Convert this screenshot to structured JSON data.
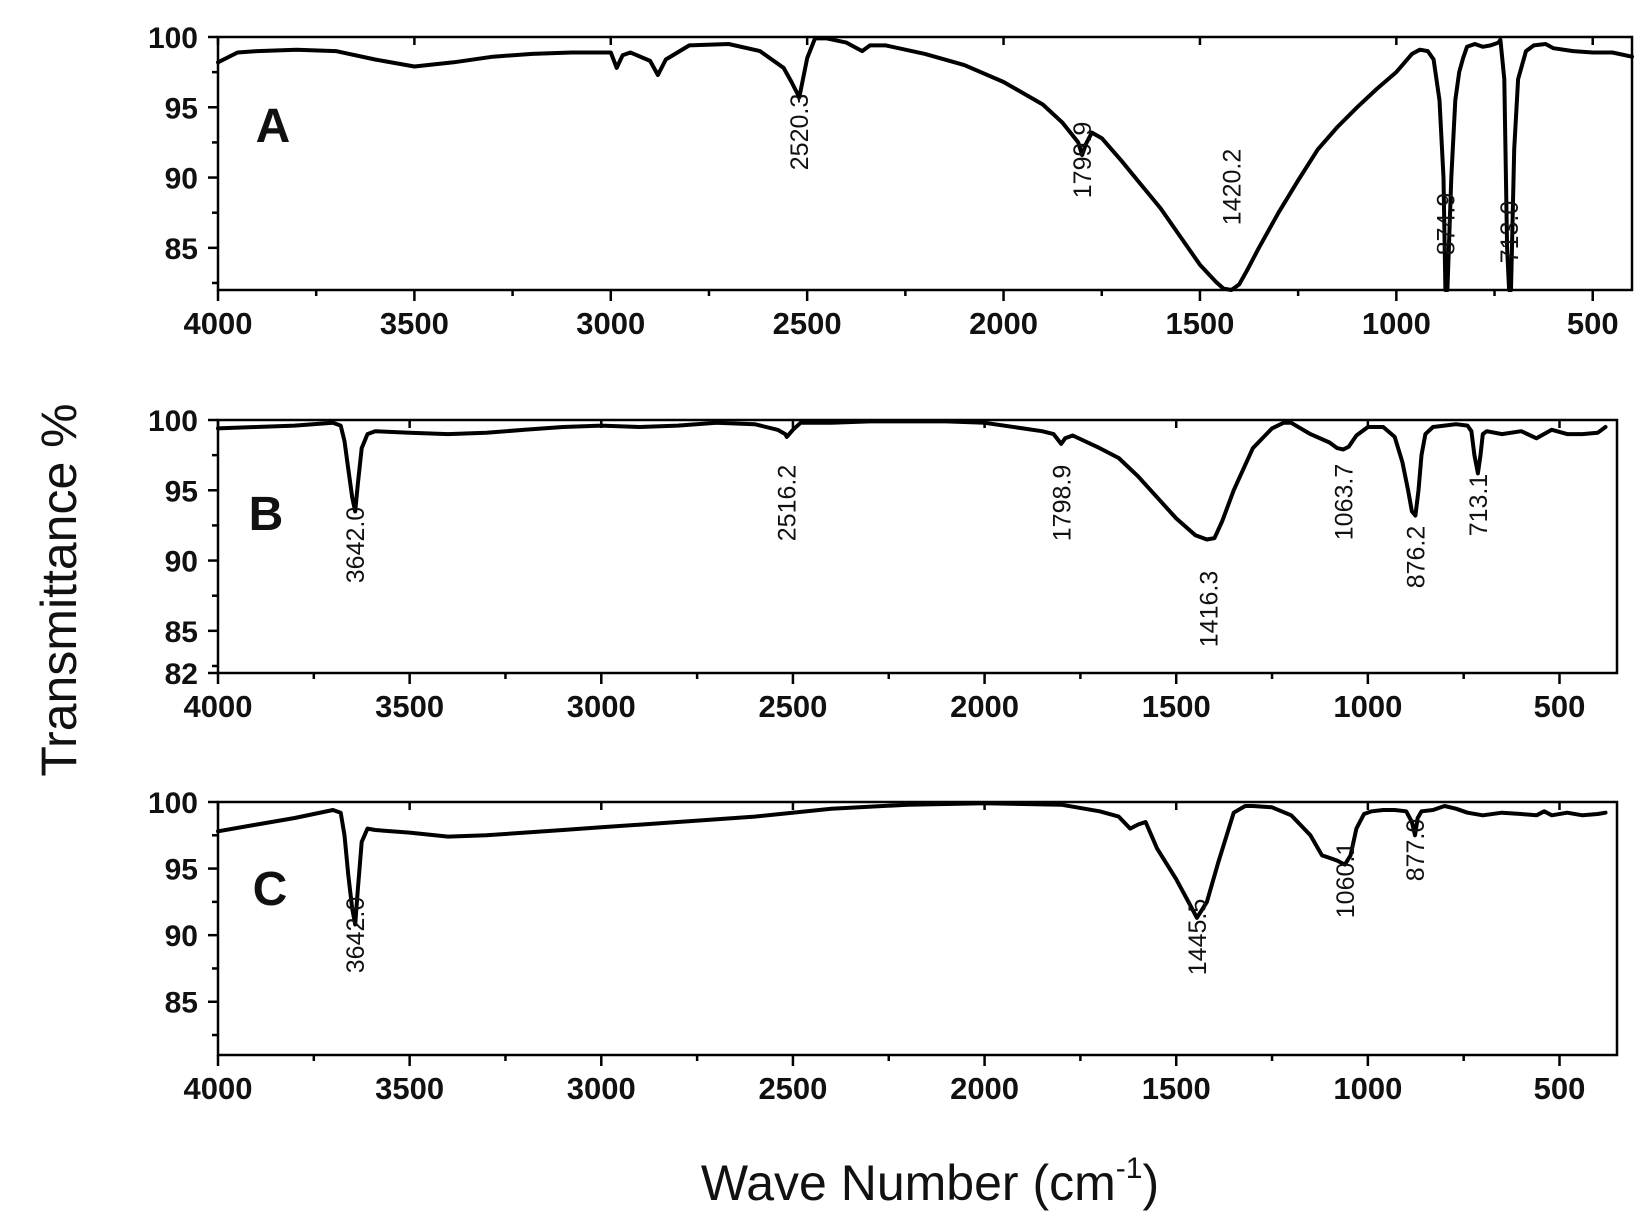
{
  "figure": {
    "ylabel": "Transmittance %",
    "xlabel_main": "Wave Number (cm",
    "xlabel_sup": "-1",
    "xlabel_close": ")"
  },
  "chart_data": [
    {
      "type": "line",
      "panel": "A",
      "xlabel": "Wave Number (cm-1)",
      "ylabel": "Transmittance %",
      "xlim": [
        4000,
        400
      ],
      "ylim": [
        82,
        100
      ],
      "x_ticks": [
        4000,
        3500,
        3000,
        2500,
        2000,
        1500,
        1000,
        500
      ],
      "x_tick_labels": [
        "4000",
        "3500",
        "3000",
        "2500",
        "2000",
        "1500",
        "1000",
        "500"
      ],
      "y_ticks": [
        100,
        95,
        90,
        85
      ],
      "y_tick_labels": [
        "100",
        "95",
        "90",
        "85"
      ],
      "series": [
        {
          "name": "A",
          "x": [
            4000,
            3950,
            3900,
            3800,
            3700,
            3600,
            3500,
            3400,
            3300,
            3200,
            3100,
            3000,
            2985,
            2970,
            2950,
            2900,
            2880,
            2860,
            2800,
            2700,
            2620,
            2560,
            2540,
            2520,
            2500,
            2480,
            2450,
            2400,
            2360,
            2340,
            2300,
            2200,
            2100,
            2000,
            1900,
            1850,
            1810,
            1800,
            1790,
            1775,
            1750,
            1700,
            1650,
            1600,
            1550,
            1500,
            1460,
            1440,
            1420,
            1400,
            1380,
            1350,
            1300,
            1250,
            1200,
            1150,
            1100,
            1050,
            1000,
            960,
            940,
            920,
            905,
            890,
            880,
            875,
            870,
            860,
            850,
            840,
            830,
            820,
            800,
            780,
            760,
            740,
            735,
            725,
            718,
            713,
            708,
            700,
            690,
            670,
            650,
            620,
            600,
            550,
            500,
            450,
            400
          ],
          "values": [
            98.2,
            98.9,
            99.0,
            99.1,
            99.0,
            98.4,
            97.9,
            98.2,
            98.6,
            98.8,
            98.9,
            98.9,
            97.8,
            98.7,
            98.9,
            98.3,
            97.3,
            98.4,
            99.4,
            99.5,
            99.0,
            97.8,
            96.8,
            95.7,
            98.5,
            99.9,
            99.9,
            99.6,
            99.0,
            99.4,
            99.4,
            98.8,
            98.0,
            96.8,
            95.2,
            93.9,
            92.5,
            91.6,
            92.4,
            93.2,
            92.8,
            91.2,
            89.5,
            87.8,
            85.8,
            83.8,
            82.6,
            82.1,
            82.0,
            82.4,
            83.4,
            85.0,
            87.5,
            89.8,
            92.0,
            93.6,
            95.0,
            96.3,
            97.5,
            98.8,
            99.1,
            99.0,
            98.4,
            95.5,
            90.0,
            82.0,
            82.0,
            90.0,
            95.5,
            97.5,
            98.5,
            99.3,
            99.5,
            99.3,
            99.4,
            99.6,
            99.8,
            97.0,
            85.0,
            82.0,
            82.0,
            92.0,
            97.0,
            99.0,
            99.4,
            99.5,
            99.2,
            99.0,
            98.9,
            98.9,
            98.6
          ]
        }
      ],
      "annotations": [
        {
          "label": "2520.3",
          "x": 2520.3
        },
        {
          "label": "1799.9",
          "x": 1799.9
        },
        {
          "label": "1420.2",
          "x": 1420.2
        },
        {
          "label": "874.9",
          "x": 874.9
        },
        {
          "label": "713.0",
          "x": 713.0
        }
      ]
    },
    {
      "type": "line",
      "panel": "B",
      "xlabel": "Wave Number (cm-1)",
      "ylabel": "Transmittance %",
      "xlim": [
        4000,
        350
      ],
      "ylim": [
        82,
        100
      ],
      "x_ticks": [
        4000,
        3500,
        3000,
        2500,
        2000,
        1500,
        1000,
        500
      ],
      "x_tick_labels": [
        "4000",
        "3500",
        "3000",
        "2500",
        "2000",
        "1500",
        "1000",
        "500"
      ],
      "y_ticks": [
        100,
        95,
        90,
        85,
        82
      ],
      "y_tick_labels": [
        "100",
        "95",
        "90",
        "85",
        "82"
      ],
      "series": [
        {
          "name": "B",
          "x": [
            4000,
            3900,
            3800,
            3700,
            3680,
            3670,
            3660,
            3650,
            3642,
            3635,
            3625,
            3610,
            3590,
            3500,
            3400,
            3300,
            3200,
            3100,
            3000,
            2900,
            2800,
            2700,
            2600,
            2540,
            2520,
            2516,
            2500,
            2480,
            2400,
            2300,
            2200,
            2100,
            2000,
            1900,
            1850,
            1820,
            1800,
            1790,
            1770,
            1700,
            1650,
            1600,
            1550,
            1500,
            1450,
            1420,
            1400,
            1380,
            1350,
            1300,
            1250,
            1220,
            1200,
            1150,
            1100,
            1080,
            1064,
            1050,
            1030,
            1000,
            960,
            930,
            910,
            895,
            885,
            876,
            868,
            860,
            850,
            830,
            800,
            770,
            740,
            730,
            722,
            713,
            706,
            700,
            690,
            650,
            600,
            560,
            520,
            480,
            440,
            400,
            380
          ],
          "values": [
            99.4,
            99.5,
            99.6,
            99.8,
            99.6,
            98.5,
            96.5,
            94.5,
            93.5,
            95.5,
            98.0,
            99.0,
            99.2,
            99.1,
            99.0,
            99.1,
            99.3,
            99.5,
            99.6,
            99.5,
            99.6,
            99.8,
            99.7,
            99.3,
            99.0,
            98.8,
            99.3,
            99.8,
            99.8,
            99.9,
            99.9,
            99.9,
            99.8,
            99.4,
            99.2,
            99.0,
            98.3,
            98.7,
            98.9,
            98.0,
            97.3,
            96.0,
            94.5,
            93.0,
            91.8,
            91.5,
            91.6,
            92.8,
            95.0,
            98.0,
            99.4,
            99.8,
            99.8,
            99.0,
            98.4,
            98.0,
            97.9,
            98.1,
            98.9,
            99.5,
            99.5,
            98.8,
            97.0,
            95.0,
            93.5,
            93.2,
            95.0,
            97.5,
            99.0,
            99.5,
            99.6,
            99.7,
            99.6,
            99.2,
            97.5,
            96.2,
            97.5,
            99.0,
            99.2,
            99.0,
            99.2,
            98.7,
            99.3,
            99.0,
            99.0,
            99.1,
            99.5
          ]
        }
      ],
      "annotations": [
        {
          "label": "3642.0",
          "x": 3642.0
        },
        {
          "label": "2516.2",
          "x": 2516.2
        },
        {
          "label": "1798.9",
          "x": 1798.9
        },
        {
          "label": "1416.3",
          "x": 1416.3
        },
        {
          "label": "1063.7",
          "x": 1063.7
        },
        {
          "label": "876.2",
          "x": 876.2
        },
        {
          "label": "713.1",
          "x": 713.1
        }
      ]
    },
    {
      "type": "line",
      "panel": "C",
      "xlabel": "Wave Number (cm-1)",
      "ylabel": "Transmittance %",
      "xlim": [
        4000,
        350
      ],
      "ylim": [
        81,
        100
      ],
      "x_ticks": [
        4000,
        3500,
        3000,
        2500,
        2000,
        1500,
        1000,
        500
      ],
      "x_tick_labels": [
        "4000",
        "3500",
        "3000",
        "2500",
        "2000",
        "1500",
        "1000",
        "500"
      ],
      "y_ticks": [
        100,
        95,
        90,
        85
      ],
      "y_tick_labels": [
        "100",
        "95",
        "90",
        "85"
      ],
      "series": [
        {
          "name": "C",
          "x": [
            4000,
            3900,
            3800,
            3700,
            3680,
            3670,
            3660,
            3650,
            3642,
            3635,
            3625,
            3610,
            3590,
            3500,
            3400,
            3300,
            3200,
            3100,
            3000,
            2800,
            2600,
            2400,
            2200,
            2000,
            1800,
            1700,
            1650,
            1620,
            1600,
            1580,
            1550,
            1500,
            1470,
            1446,
            1420,
            1390,
            1350,
            1320,
            1300,
            1250,
            1200,
            1150,
            1120,
            1100,
            1080,
            1060,
            1045,
            1030,
            1010,
            990,
            960,
            930,
            900,
            885,
            877,
            870,
            860,
            830,
            800,
            770,
            740,
            700,
            650,
            600,
            560,
            540,
            520,
            480,
            440,
            400,
            380
          ],
          "values": [
            97.8,
            98.3,
            98.8,
            99.4,
            99.2,
            97.5,
            94.5,
            92.0,
            90.8,
            93.5,
            97.0,
            98.0,
            97.9,
            97.7,
            97.4,
            97.5,
            97.7,
            97.9,
            98.1,
            98.5,
            98.9,
            99.5,
            99.8,
            99.9,
            99.8,
            99.3,
            98.9,
            98.0,
            98.3,
            98.5,
            96.5,
            94.2,
            92.6,
            91.3,
            92.5,
            95.5,
            99.2,
            99.7,
            99.7,
            99.6,
            99.0,
            97.5,
            96.0,
            95.8,
            95.6,
            95.3,
            96.0,
            98.0,
            99.1,
            99.3,
            99.4,
            99.4,
            99.3,
            98.5,
            97.5,
            98.8,
            99.3,
            99.4,
            99.7,
            99.5,
            99.2,
            99.0,
            99.2,
            99.1,
            99.0,
            99.3,
            99.0,
            99.2,
            99.0,
            99.1,
            99.2
          ]
        }
      ],
      "annotations": [
        {
          "label": "3642.0",
          "x": 3642.0
        },
        {
          "label": "1445.5",
          "x": 1445.5
        },
        {
          "label": "1060.1",
          "x": 1060.1
        },
        {
          "label": "877.0",
          "x": 877.0
        }
      ]
    }
  ]
}
